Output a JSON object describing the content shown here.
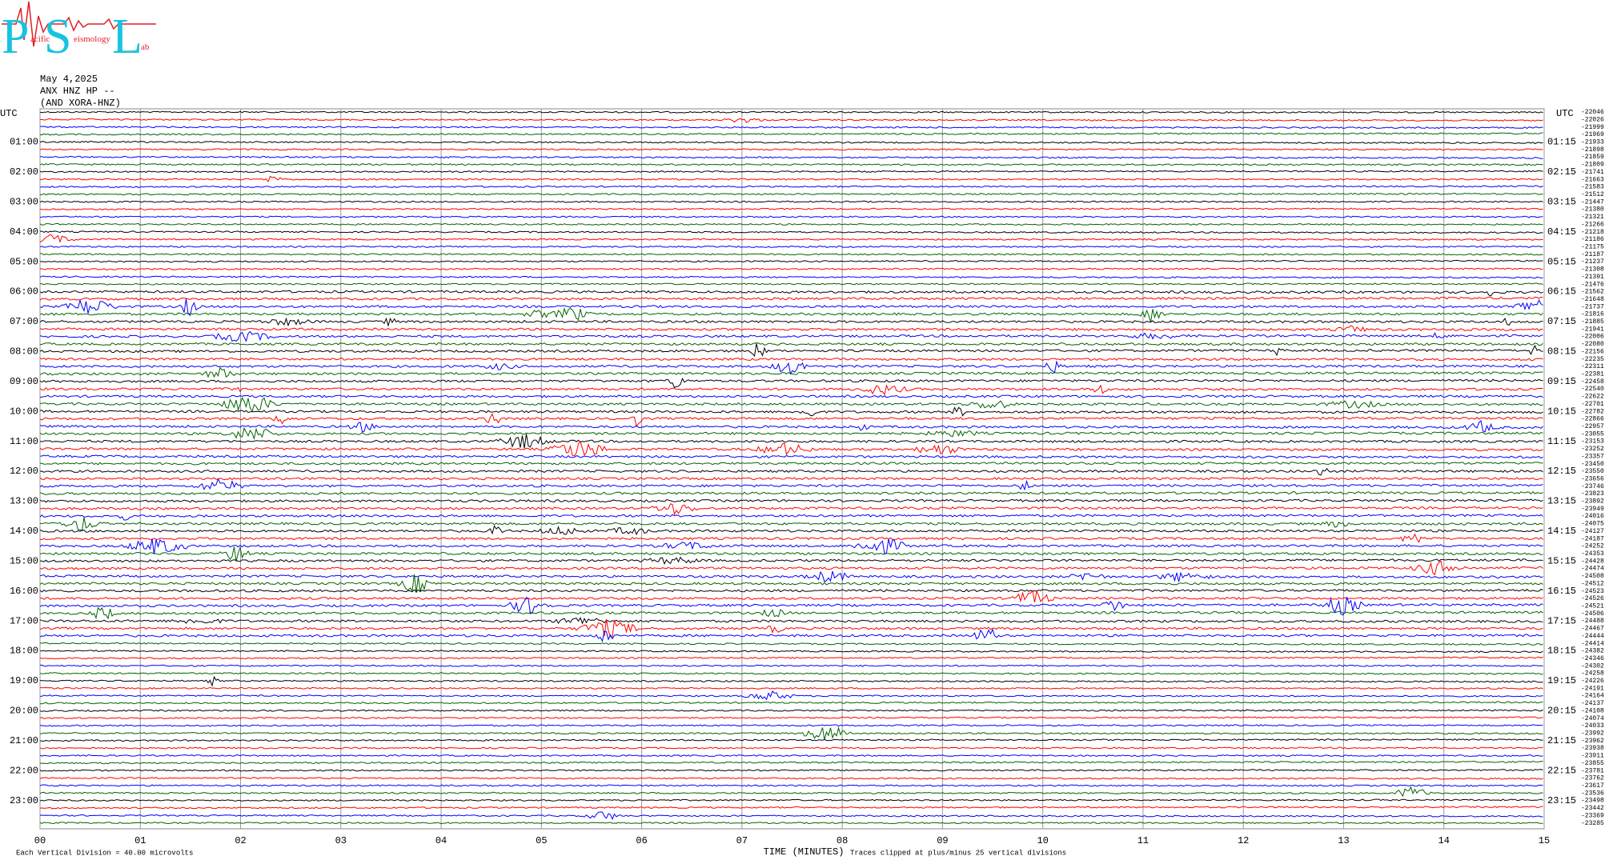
{
  "logo": {
    "letters": [
      "P",
      "S",
      "L"
    ],
    "words": [
      "acific",
      "eismology",
      "ab"
    ]
  },
  "header": {
    "date": "May 4,2025",
    "station": "ANX HNZ HP --",
    "network": "(AND XORA-HNZ)"
  },
  "left_axis": {
    "title": "UTC",
    "labels": [
      "01:00",
      "02:00",
      "03:00",
      "04:00",
      "05:00",
      "06:00",
      "07:00",
      "08:00",
      "09:00",
      "10:00",
      "11:00",
      "12:00",
      "13:00",
      "14:00",
      "15:00",
      "16:00",
      "17:00",
      "18:00",
      "19:00",
      "20:00",
      "21:00",
      "22:00",
      "23:00"
    ]
  },
  "right_axis": {
    "title": "UTC",
    "labels": [
      "01:15",
      "02:15",
      "03:15",
      "04:15",
      "05:15",
      "06:15",
      "07:15",
      "08:15",
      "09:15",
      "10:15",
      "11:15",
      "12:15",
      "13:15",
      "14:15",
      "15:15",
      "16:15",
      "17:15",
      "18:15",
      "19:15",
      "20:15",
      "21:15",
      "22:15",
      "23:15"
    ],
    "offsets": [
      -22046,
      -22026,
      -21999,
      -21969,
      -21933,
      -21898,
      -21859,
      -21809,
      -21741,
      -21663,
      -21583,
      -21512,
      -21447,
      -21380,
      -21321,
      -21266,
      -21218,
      -21186,
      -21175,
      -21187,
      -21237,
      -21308,
      -21391,
      -21476,
      -21562,
      -21648,
      -21737,
      -21816,
      -21885,
      -21941,
      -22006,
      -22080,
      -22156,
      -22235,
      -22311,
      -22381,
      -22458,
      -22540,
      -22622,
      -22701,
      -22782,
      -22866,
      -22957,
      -23055,
      -23153,
      -23252,
      -23357,
      -23450,
      -23550,
      -23656,
      -23746,
      -23823,
      -23892,
      -23949,
      -24016,
      -24075,
      -24127,
      -24187,
      -24252,
      -24353,
      -24428,
      -24474,
      -24508,
      -24512,
      -24523,
      -24526,
      -24521,
      -24506,
      -24488,
      -24467,
      -24444,
      -24414,
      -24382,
      -24346,
      -24302,
      -24258,
      -24226,
      -24191,
      -24164,
      -24137,
      -24108,
      -24074,
      -24033,
      -23992,
      -23962,
      -23938,
      -23911,
      -23855,
      -23781,
      -23762,
      -23617,
      -23536,
      -23498,
      -23442,
      -23369,
      -23285
    ]
  },
  "x_axis": {
    "ticks": [
      "00",
      "01",
      "02",
      "03",
      "04",
      "05",
      "06",
      "07",
      "08",
      "09",
      "10",
      "11",
      "12",
      "13",
      "14",
      "15"
    ],
    "title": "TIME (MINUTES)"
  },
  "footer": {
    "scale": "Each Vertical Division =   40.00 microvolts",
    "clip": "Traces clipped at plus/minus 25 vertical divisions"
  },
  "trace_colors": [
    "#000000",
    "#ff0000",
    "#0000ff",
    "#006400"
  ]
}
